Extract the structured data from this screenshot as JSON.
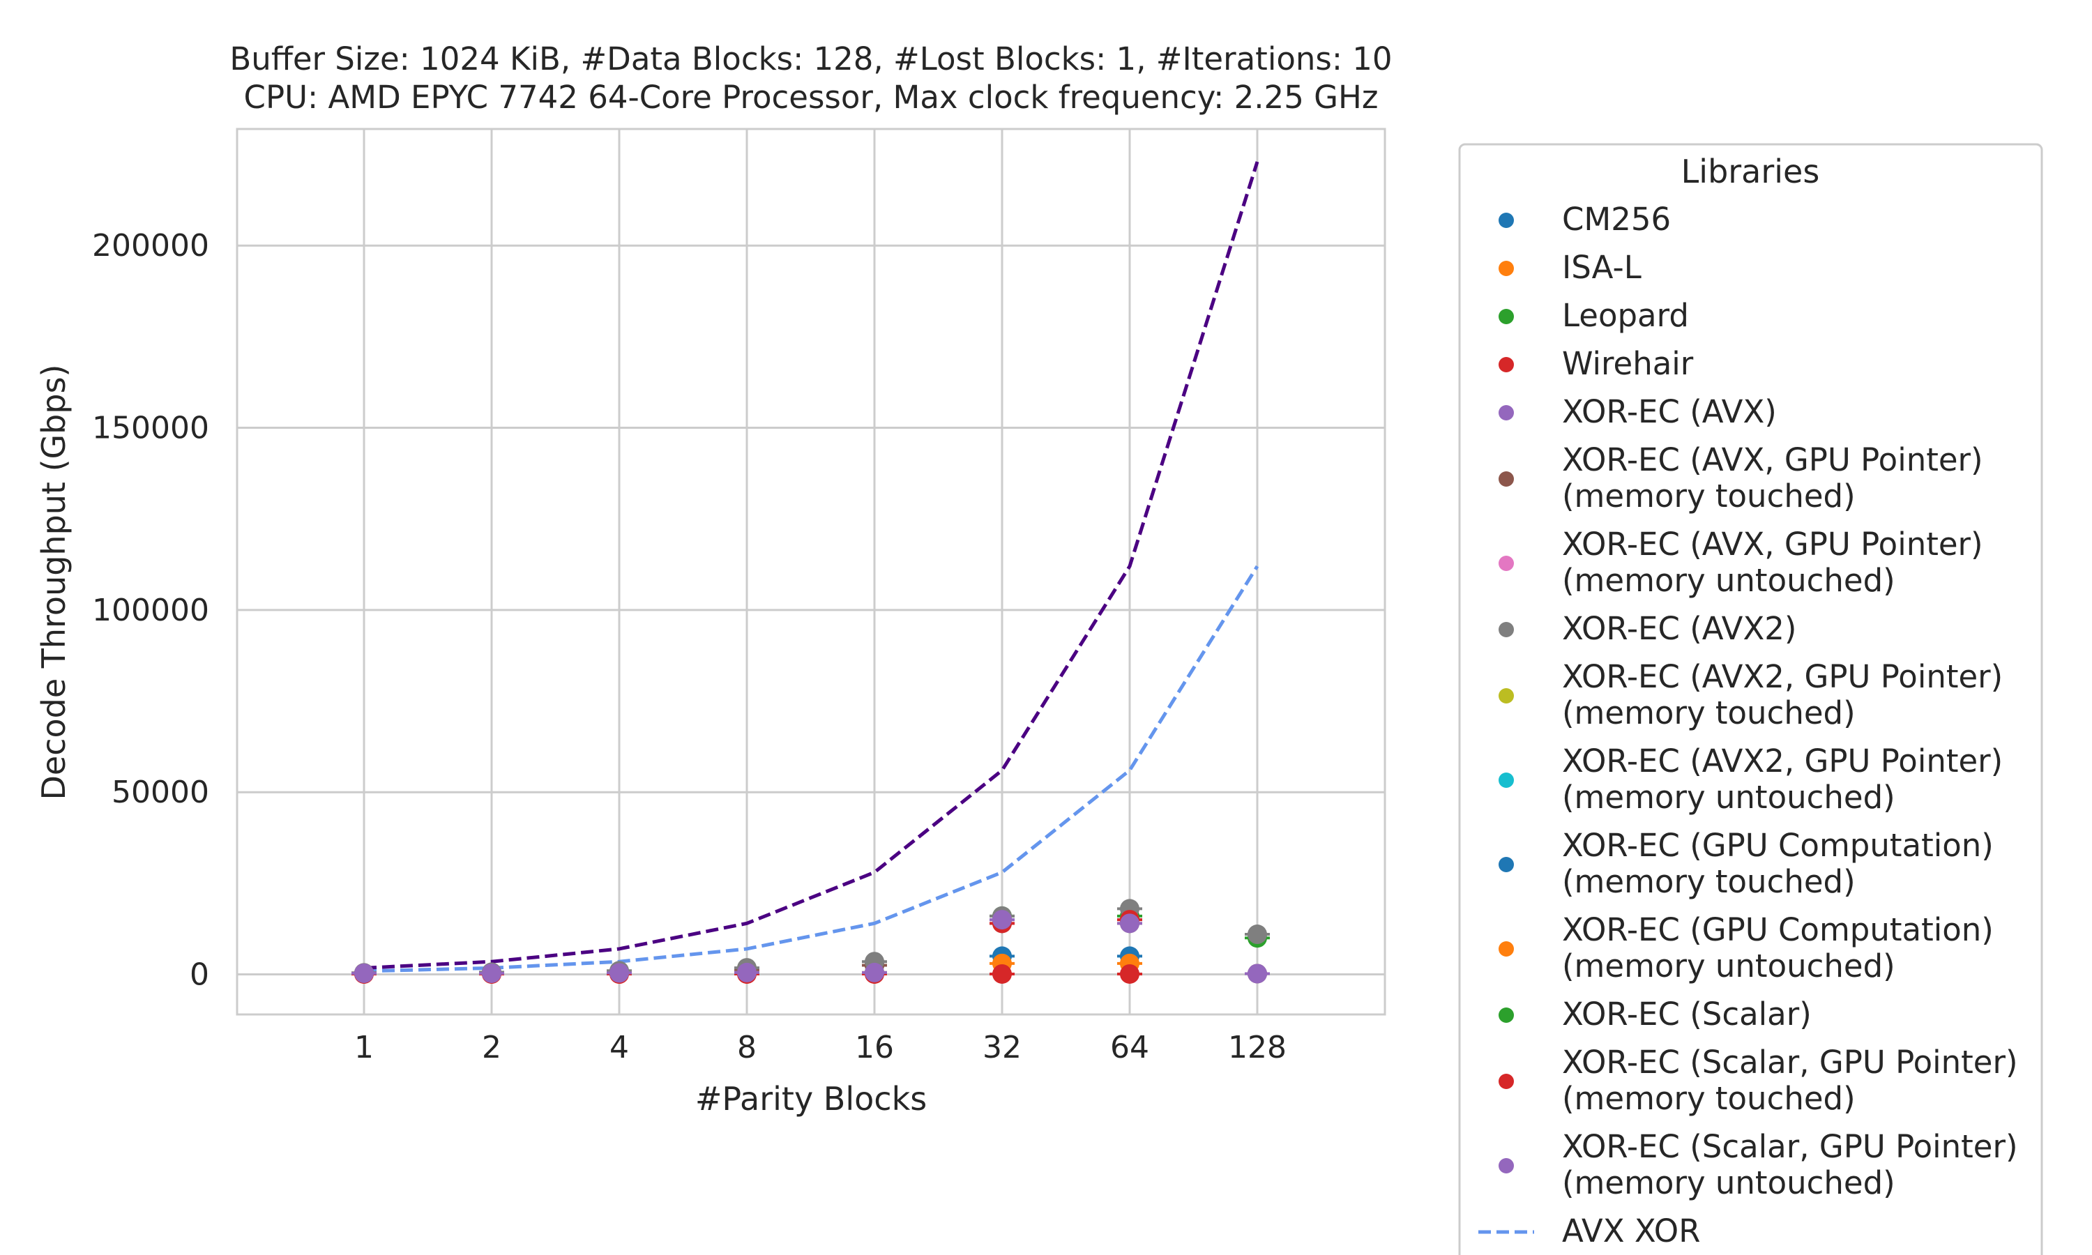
{
  "chart_data": {
    "type": "line",
    "title": "Buffer Size: 1024 KiB, #Data Blocks: 128, #Lost Blocks: 1, #Iterations: 10",
    "subtitle": "CPU: AMD EPYC 7742 64-Core Processor, Max clock frequency: 2.25 GHz",
    "xlabel": "#Parity Blocks",
    "ylabel": "Decode Throughput (Gbps)",
    "x_categories": [
      "1",
      "2",
      "4",
      "8",
      "16",
      "32",
      "64",
      "128"
    ],
    "y_ticks": [
      0,
      50000,
      100000,
      150000,
      200000
    ],
    "y_tick_labels": [
      "0",
      "50000",
      "100000",
      "150000",
      "200000"
    ],
    "ylim": [
      -11000,
      232000
    ],
    "grid": true,
    "legend": {
      "title": "Libraries",
      "placement": "outside-right",
      "entries": [
        {
          "label_lines": [
            "CM256"
          ],
          "color": "#1f77b4",
          "marker": "dot"
        },
        {
          "label_lines": [
            "ISA-L"
          ],
          "color": "#ff7f0e",
          "marker": "dot"
        },
        {
          "label_lines": [
            "Leopard"
          ],
          "color": "#2ca02c",
          "marker": "dot"
        },
        {
          "label_lines": [
            "Wirehair"
          ],
          "color": "#d62728",
          "marker": "dot"
        },
        {
          "label_lines": [
            "XOR-EC (AVX)"
          ],
          "color": "#9467bd",
          "marker": "dot"
        },
        {
          "label_lines": [
            "XOR-EC (AVX, GPU Pointer)",
            "(memory touched)"
          ],
          "color": "#8c564b",
          "marker": "dot"
        },
        {
          "label_lines": [
            "XOR-EC (AVX, GPU Pointer)",
            "(memory untouched)"
          ],
          "color": "#e377c2",
          "marker": "dot"
        },
        {
          "label_lines": [
            "XOR-EC (AVX2)"
          ],
          "color": "#7f7f7f",
          "marker": "dot"
        },
        {
          "label_lines": [
            "XOR-EC (AVX2, GPU Pointer)",
            "(memory touched)"
          ],
          "color": "#bcbd22",
          "marker": "dot"
        },
        {
          "label_lines": [
            "XOR-EC (AVX2, GPU Pointer)",
            "(memory untouched)"
          ],
          "color": "#17becf",
          "marker": "dot"
        },
        {
          "label_lines": [
            "XOR-EC (GPU Computation)",
            "(memory touched)"
          ],
          "color": "#1f77b4",
          "marker": "dot"
        },
        {
          "label_lines": [
            "XOR-EC (GPU Computation)",
            "(memory untouched)"
          ],
          "color": "#ff7f0e",
          "marker": "dot"
        },
        {
          "label_lines": [
            "XOR-EC (Scalar)"
          ],
          "color": "#2ca02c",
          "marker": "dot"
        },
        {
          "label_lines": [
            "XOR-EC (Scalar, GPU Pointer)",
            "(memory touched)"
          ],
          "color": "#d62728",
          "marker": "dot"
        },
        {
          "label_lines": [
            "XOR-EC (Scalar, GPU Pointer)",
            "(memory untouched)"
          ],
          "color": "#9467bd",
          "marker": "dot"
        },
        {
          "label_lines": [
            "AVX XOR"
          ],
          "color": "#6495ed",
          "marker": "dashed-line"
        }
      ]
    },
    "lines": [
      {
        "name": "AVX XOR",
        "color": "#6495ed",
        "values": [
          870,
          1750,
          3500,
          7000,
          14000,
          28000,
          56000,
          112000
        ]
      },
      {
        "color": "#4b0082",
        "values": [
          1750,
          3500,
          7000,
          14000,
          28000,
          56000,
          112000,
          223000
        ]
      }
    ],
    "points": [
      {
        "series": "CM256",
        "color": "#1f77b4",
        "values": [
          200,
          300,
          300,
          400,
          500,
          5000,
          5000,
          null
        ]
      },
      {
        "series": "ISA-L",
        "color": "#ff7f0e",
        "values": [
          200,
          300,
          300,
          400,
          500,
          3000,
          3000,
          null
        ]
      },
      {
        "series": "Leopard",
        "color": "#2ca02c",
        "values": [
          300,
          400,
          700,
          1500,
          2500,
          16000,
          16000,
          10000
        ]
      },
      {
        "series": "Wirehair",
        "color": "#d62728",
        "values": [
          100,
          100,
          100,
          100,
          100,
          100,
          100,
          null
        ]
      },
      {
        "series": "XOR-EC (AVX)",
        "color": "#9467bd",
        "values": [
          400,
          500,
          800,
          1300,
          2500,
          15000,
          15000,
          200
        ]
      },
      {
        "series": "XOR-EC (AVX, GPU Pointer) (memory touched)",
        "color": "#8c564b",
        "values": [
          400,
          500,
          800,
          1300,
          2500,
          14000,
          14000,
          200
        ]
      },
      {
        "series": "XOR-EC (AVX2)",
        "color": "#7f7f7f",
        "values": [
          400,
          600,
          1000,
          1800,
          3500,
          16000,
          18000,
          11000
        ]
      },
      {
        "series": "XOR-EC (Scalar, GPU Pointer) (memory touched)",
        "color": "#d62728",
        "values": [
          100,
          100,
          100,
          100,
          100,
          14000,
          15000,
          null
        ]
      },
      {
        "series": "XOR-EC (Scalar, GPU Pointer) (memory untouched)",
        "color": "#9467bd",
        "values": [
          300,
          300,
          400,
          500,
          500,
          15000,
          14000,
          200
        ]
      }
    ]
  }
}
